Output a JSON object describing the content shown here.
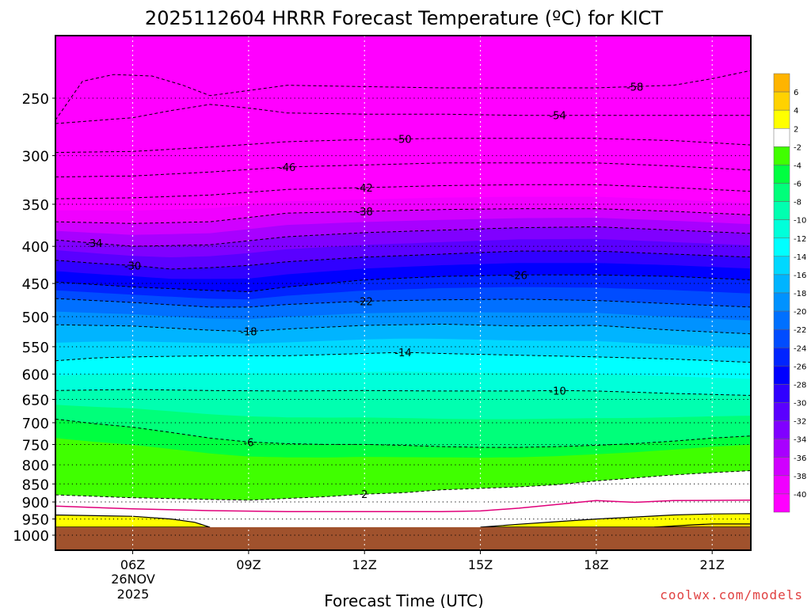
{
  "watermark": "coolwx.com/models",
  "colors": {
    "ground": "#a0522d",
    "freezing_line": "#e0007a",
    "background": "#ffffff"
  },
  "chart_data": {
    "type": "heatmap",
    "title": "2025112604 HRRR Forecast Temperature (ºC) for KICT",
    "xlabel": "Forecast Time (UTC)",
    "ylabel": "",
    "date_label": [
      "26NOV",
      "2025"
    ],
    "x_range": [
      "04Z",
      "22Z"
    ],
    "x_ticks": [
      {
        "hour": 6,
        "label": "06Z"
      },
      {
        "hour": 9,
        "label": "09Z"
      },
      {
        "hour": 12,
        "label": "12Z"
      },
      {
        "hour": 15,
        "label": "15Z"
      },
      {
        "hour": 18,
        "label": "18Z"
      },
      {
        "hour": 21,
        "label": "21Z"
      }
    ],
    "y_range_hpa": [
      1000,
      200
    ],
    "y_scale": "log",
    "y_ticks": [
      1000,
      950,
      900,
      850,
      800,
      750,
      700,
      650,
      600,
      550,
      500,
      450,
      400,
      350,
      300,
      250
    ],
    "grid": "dotted",
    "surface_pressure_hpa": 975,
    "colorbar": {
      "placement": "right",
      "labels": [
        "6",
        "4",
        "2",
        "-2",
        "-4",
        "-6",
        "-8",
        "-10",
        "-12",
        "-14",
        "-16",
        "-18",
        "-20",
        "-22",
        "-24",
        "-26",
        "-28",
        "-30",
        "-32",
        "-34",
        "-36",
        "-38",
        "-40"
      ],
      "bins": [
        {
          "range": "6–8",
          "color": "#ffb400"
        },
        {
          "range": "4–6",
          "color": "#ffd200"
        },
        {
          "range": "2–4",
          "color": "#ffff00"
        },
        {
          "range": "-2–2",
          "color": "#ffffff"
        },
        {
          "range": "-4–-2",
          "color": "#40ff00"
        },
        {
          "range": "-6–-4",
          "color": "#00ff40"
        },
        {
          "range": "-8–-6",
          "color": "#00ff7a"
        },
        {
          "range": "-10–-8",
          "color": "#00ffb0"
        },
        {
          "range": "-12–-10",
          "color": "#00ffda"
        },
        {
          "range": "-14–-12",
          "color": "#00ffff"
        },
        {
          "range": "-16–-14",
          "color": "#00d8ff"
        },
        {
          "range": "-18–-16",
          "color": "#00b4ff"
        },
        {
          "range": "-20–-18",
          "color": "#0092ff"
        },
        {
          "range": "-22–-20",
          "color": "#0070ff"
        },
        {
          "range": "-24–-22",
          "color": "#004cff"
        },
        {
          "range": "-26–-24",
          "color": "#0024ff"
        },
        {
          "range": "-28–-26",
          "color": "#0000ff"
        },
        {
          "range": "-30–-28",
          "color": "#3000ff"
        },
        {
          "range": "-32–-30",
          "color": "#5a00ff"
        },
        {
          "range": "-34–-32",
          "color": "#8000ff"
        },
        {
          "range": "-36–-34",
          "color": "#a800ff"
        },
        {
          "range": "-38–-36",
          "color": "#d000ff"
        },
        {
          "range": "-40–-38",
          "color": "#f000ff"
        },
        {
          "range": "< -40",
          "color": "#ff00ff"
        }
      ]
    },
    "contours": [
      {
        "label": "2",
        "temperature": 2,
        "points": [
          [
            4,
            880
          ],
          [
            6,
            888
          ],
          [
            8,
            893
          ],
          [
            9,
            895
          ],
          [
            10,
            890
          ],
          [
            11,
            885
          ],
          [
            12,
            878
          ],
          [
            13,
            874
          ],
          [
            14,
            866
          ],
          [
            15,
            862
          ],
          [
            16,
            858
          ],
          [
            17,
            852
          ],
          [
            18,
            842
          ],
          [
            19,
            834
          ],
          [
            20,
            826
          ],
          [
            21,
            820
          ],
          [
            22,
            815
          ]
        ]
      },
      {
        "label": "-6",
        "temperature": -6,
        "points": [
          [
            4,
            692
          ],
          [
            5,
            702
          ],
          [
            6,
            710
          ],
          [
            7,
            722
          ],
          [
            8,
            735
          ],
          [
            9,
            744
          ],
          [
            10,
            748
          ],
          [
            11,
            750
          ],
          [
            12,
            750
          ],
          [
            13,
            752
          ],
          [
            14,
            755
          ],
          [
            15,
            757
          ],
          [
            16,
            757
          ],
          [
            17,
            755
          ],
          [
            18,
            752
          ],
          [
            19,
            748
          ],
          [
            20,
            742
          ],
          [
            21,
            735
          ],
          [
            22,
            730
          ]
        ]
      },
      {
        "label": "-10",
        "temperature": -10,
        "points": [
          [
            4,
            632
          ],
          [
            6,
            630
          ],
          [
            8,
            632
          ],
          [
            10,
            633
          ],
          [
            12,
            632
          ],
          [
            14,
            633
          ],
          [
            16,
            633
          ],
          [
            17,
            632
          ],
          [
            18,
            633
          ],
          [
            20,
            638
          ],
          [
            22,
            642
          ]
        ]
      },
      {
        "label": "-14",
        "temperature": -14,
        "points": [
          [
            4,
            575
          ],
          [
            5,
            570
          ],
          [
            6,
            568
          ],
          [
            8,
            566
          ],
          [
            10,
            566
          ],
          [
            12,
            562
          ],
          [
            13,
            560
          ],
          [
            14,
            562
          ],
          [
            16,
            565
          ],
          [
            18,
            568
          ],
          [
            20,
            572
          ],
          [
            22,
            578
          ]
        ]
      },
      {
        "label": "-18",
        "temperature": -18,
        "points": [
          [
            4,
            513
          ],
          [
            6,
            515
          ],
          [
            8,
            522
          ],
          [
            9,
            524
          ],
          [
            10,
            520
          ],
          [
            12,
            514
          ],
          [
            14,
            512
          ],
          [
            16,
            515
          ],
          [
            18,
            514
          ],
          [
            20,
            522
          ],
          [
            22,
            528
          ]
        ]
      },
      {
        "label": "-22",
        "temperature": -22,
        "points": [
          [
            4,
            472
          ],
          [
            6,
            478
          ],
          [
            8,
            485
          ],
          [
            9,
            485
          ],
          [
            10,
            481
          ],
          [
            12,
            476
          ],
          [
            14,
            474
          ],
          [
            16,
            473
          ],
          [
            18,
            475
          ],
          [
            20,
            480
          ],
          [
            22,
            485
          ]
        ]
      },
      {
        "label": "-26",
        "temperature": -26,
        "points": [
          [
            4,
            448
          ],
          [
            6,
            455
          ],
          [
            8,
            460
          ],
          [
            9,
            462
          ],
          [
            10,
            455
          ],
          [
            12,
            445
          ],
          [
            14,
            440
          ],
          [
            16,
            438
          ],
          [
            18,
            438
          ],
          [
            20,
            440
          ],
          [
            22,
            445
          ]
        ]
      },
      {
        "label": "-30",
        "temperature": -30,
        "points": [
          [
            4,
            418
          ],
          [
            5,
            422
          ],
          [
            6,
            425
          ],
          [
            7,
            430
          ],
          [
            8,
            428
          ],
          [
            9,
            425
          ],
          [
            10,
            420
          ],
          [
            12,
            414
          ],
          [
            14,
            410
          ],
          [
            16,
            406
          ],
          [
            18,
            406
          ],
          [
            20,
            410
          ],
          [
            22,
            414
          ]
        ]
      },
      {
        "label": "-34",
        "temperature": -34,
        "points": [
          [
            4,
            392
          ],
          [
            6,
            400
          ],
          [
            8,
            398
          ],
          [
            9,
            393
          ],
          [
            10,
            388
          ],
          [
            12,
            383
          ],
          [
            14,
            380
          ],
          [
            16,
            377
          ],
          [
            18,
            376
          ],
          [
            20,
            380
          ],
          [
            22,
            384
          ]
        ]
      },
      {
        "label": "-38",
        "temperature": -38,
        "points": [
          [
            4,
            370
          ],
          [
            6,
            372
          ],
          [
            8,
            370
          ],
          [
            9,
            365
          ],
          [
            10,
            360
          ],
          [
            12,
            358
          ],
          [
            14,
            356
          ],
          [
            16,
            355
          ],
          [
            18,
            355
          ],
          [
            20,
            358
          ],
          [
            22,
            362
          ]
        ]
      },
      {
        "label": "-42",
        "temperature": -42,
        "points": [
          [
            4,
            344
          ],
          [
            6,
            343
          ],
          [
            8,
            340
          ],
          [
            10,
            334
          ],
          [
            12,
            332
          ],
          [
            14,
            330
          ],
          [
            16,
            329
          ],
          [
            18,
            329
          ],
          [
            20,
            332
          ],
          [
            22,
            336
          ]
        ]
      },
      {
        "label": "-46",
        "temperature": -46,
        "points": [
          [
            4,
            321
          ],
          [
            6,
            320
          ],
          [
            8,
            316
          ],
          [
            10,
            311
          ],
          [
            12,
            309
          ],
          [
            14,
            307
          ],
          [
            16,
            307
          ],
          [
            18,
            307
          ],
          [
            20,
            310
          ],
          [
            22,
            314
          ]
        ]
      },
      {
        "label": "-50",
        "temperature": -50,
        "points": [
          [
            4,
            297
          ],
          [
            6,
            296
          ],
          [
            8,
            292
          ],
          [
            10,
            287
          ],
          [
            12,
            285
          ],
          [
            14,
            284
          ],
          [
            16,
            284
          ],
          [
            18,
            284
          ],
          [
            20,
            286
          ],
          [
            22,
            290
          ]
        ]
      },
      {
        "label": "-54",
        "temperature": -54,
        "points": [
          [
            4,
            271
          ],
          [
            6,
            266
          ],
          [
            7,
            260
          ],
          [
            8,
            255
          ],
          [
            9,
            258
          ],
          [
            10,
            262
          ],
          [
            12,
            263
          ],
          [
            14,
            263
          ],
          [
            16,
            264
          ],
          [
            18,
            264
          ],
          [
            20,
            264
          ],
          [
            22,
            264
          ]
        ]
      },
      {
        "label": "-58",
        "temperature": -58,
        "points": [
          [
            4,
            268
          ],
          [
            4.7,
            237
          ],
          [
            5.5,
            232
          ],
          [
            6.5,
            233
          ],
          [
            7.3,
            240
          ],
          [
            8,
            248
          ],
          [
            9,
            244
          ],
          [
            10,
            240
          ],
          [
            12,
            241
          ],
          [
            14,
            242
          ],
          [
            16,
            242
          ],
          [
            18,
            242
          ],
          [
            20,
            240
          ],
          [
            21,
            235
          ],
          [
            22,
            229
          ]
        ]
      }
    ],
    "freezing_level_0C": [
      [
        4,
        912
      ],
      [
        6,
        920
      ],
      [
        8,
        925
      ],
      [
        10,
        928
      ],
      [
        12,
        928
      ],
      [
        14,
        928
      ],
      [
        15,
        926
      ],
      [
        16,
        918
      ],
      [
        17,
        907
      ],
      [
        18,
        896
      ],
      [
        19,
        901
      ],
      [
        20,
        896
      ],
      [
        22,
        895
      ]
    ]
  }
}
